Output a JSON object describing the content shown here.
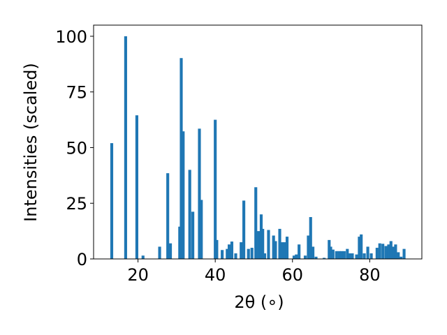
{
  "chart_data": {
    "type": "bar",
    "title": "",
    "xlabel": "2θ (∘)",
    "ylabel": "Intensities (scaled)",
    "xlim": [
      8.5,
      93.5
    ],
    "ylim": [
      0,
      105
    ],
    "grid": false,
    "bar_color": "#1f77b4",
    "bar_width": 0.75,
    "xticks": [
      20,
      40,
      60,
      80
    ],
    "yticks": [
      0,
      25,
      50,
      75,
      100
    ],
    "x": [
      13.2,
      16.8,
      19.7,
      21.3,
      25.6,
      27.7,
      28.4,
      30.8,
      31.2,
      31.7,
      33.4,
      34.2,
      35.9,
      36.4,
      40.0,
      40.4,
      41.8,
      43.1,
      43.6,
      44.3,
      45.3,
      46.7,
      47.4,
      48.6,
      49.5,
      50.5,
      51.2,
      51.9,
      52.3,
      52.8,
      53.8,
      55.1,
      55.6,
      56.7,
      57.3,
      57.9,
      58.6,
      60.4,
      61.0,
      61.7,
      63.3,
      64.1,
      64.7,
      65.3,
      66.1,
      68.2,
      69.5,
      69.9,
      70.5,
      71.4,
      72.1,
      72.7,
      73.4,
      74.2,
      74.8,
      75.5,
      76.6,
      77.3,
      77.8,
      78.6,
      79.5,
      80.4,
      81.9,
      82.6,
      83.4,
      84.2,
      84.9,
      85.5,
      86.1,
      86.7,
      87.4,
      88.1,
      88.9
    ],
    "values": [
      52,
      100,
      64.5,
      1.5,
      5.5,
      38.5,
      7,
      14.5,
      90.2,
      57.3,
      40,
      21.2,
      58.5,
      26.5,
      62.5,
      8.5,
      4,
      4.5,
      6.5,
      7.8,
      2.5,
      7.5,
      26.2,
      4.5,
      5,
      32.2,
      12.5,
      20,
      13.5,
      2.5,
      13,
      10.5,
      8,
      13.5,
      7.5,
      7.5,
      10,
      1.5,
      2,
      6.5,
      1.5,
      10.5,
      18.8,
      5.5,
      1,
      0.5,
      8.5,
      5.5,
      4.2,
      3.5,
      3.5,
      3.5,
      3.5,
      4.5,
      2.5,
      2.5,
      2,
      10,
      11,
      2.5,
      5.5,
      2.5,
      5,
      7,
      6.8,
      5.8,
      6.5,
      8,
      5.5,
      6.5,
      3,
      1,
      4.5
    ]
  }
}
